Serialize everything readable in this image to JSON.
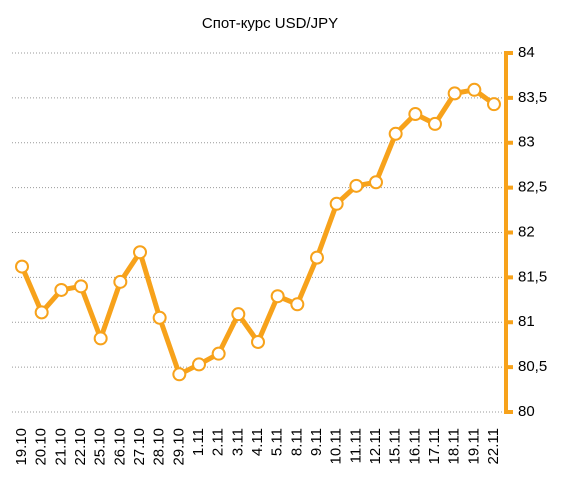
{
  "chart_data": {
    "type": "line",
    "title": "Спот-курс USD/JPY",
    "categories": [
      "19.10",
      "20.10",
      "21.10",
      "22.10",
      "25.10",
      "26.10",
      "27.10",
      "28.10",
      "29.10",
      "1.11",
      "2.11",
      "3.11",
      "4.11",
      "5.11",
      "8.11",
      "9.11",
      "10.11",
      "11.11",
      "12.11",
      "15.11",
      "16.11",
      "17.11",
      "18.11",
      "19.11",
      "22.11"
    ],
    "series": [
      {
        "name": "USD/JPY",
        "color": "#f7a21b",
        "values": [
          81.62,
          81.11,
          81.36,
          81.4,
          80.82,
          81.45,
          81.78,
          81.05,
          80.42,
          80.53,
          80.65,
          81.09,
          80.78,
          81.29,
          81.2,
          81.72,
          82.32,
          82.52,
          82.56,
          83.1,
          83.32,
          83.21,
          83.55,
          83.59,
          83.43
        ]
      }
    ],
    "ylim": [
      80,
      84
    ],
    "yticks": [
      80,
      {
        "value": 80.5,
        "label": "80,5"
      },
      81,
      {
        "value": 81.5,
        "label": "81,5"
      },
      82,
      {
        "value": 82.5,
        "label": "82,5"
      },
      83,
      {
        "value": 83.5,
        "label": "83,5"
      },
      84
    ],
    "y_axis_side": "right",
    "grid": true
  }
}
